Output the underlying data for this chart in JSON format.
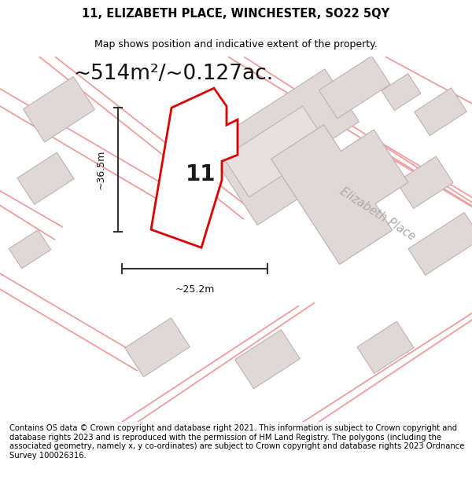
{
  "title": "11, ELIZABETH PLACE, WINCHESTER, SO22 5QY",
  "subtitle": "Map shows position and indicative extent of the property.",
  "area_text": "~514m²/~0.127ac.",
  "width_label": "~25.2m",
  "height_label": "~36.5m",
  "property_number": "11",
  "street_label": "Elizabeth Place",
  "footer_text": "Contains OS data © Crown copyright and database right 2021. This information is subject to Crown copyright and database rights 2023 and is reproduced with the permission of HM Land Registry. The polygons (including the associated geometry, namely x, y co-ordinates) are subject to Crown copyright and database rights 2023 Ordnance Survey 100026316.",
  "bg_color": "#ffffff",
  "map_bg": "#fdf6f6",
  "road_outline_color": "#f0a0a0",
  "building_fill": "#e0d8d8",
  "building_edge": "#c0b0b0",
  "property_fill": "#ffffff",
  "property_outline": "#dd0000",
  "title_fontsize": 10.5,
  "subtitle_fontsize": 9,
  "area_fontsize": 19,
  "footer_fontsize": 7.2,
  "street_label_color": "#b0a8a8",
  "street_label_fontsize": 10.5,
  "number_fontsize": 20
}
